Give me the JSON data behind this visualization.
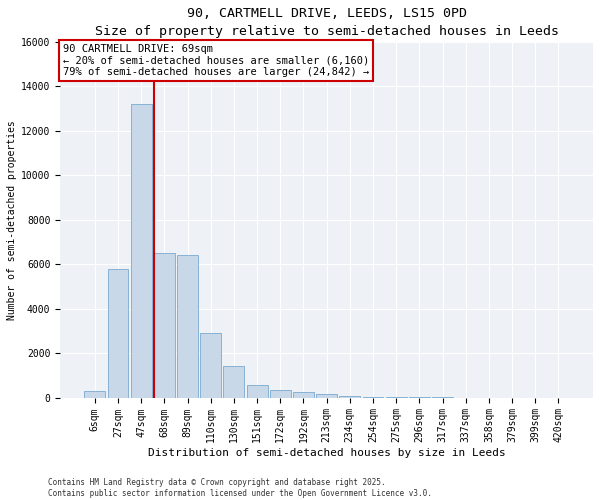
{
  "title": "90, CARTMELL DRIVE, LEEDS, LS15 0PD",
  "subtitle": "Size of property relative to semi-detached houses in Leeds",
  "xlabel": "Distribution of semi-detached houses by size in Leeds",
  "ylabel": "Number of semi-detached properties",
  "bin_labels": [
    "6sqm",
    "27sqm",
    "47sqm",
    "68sqm",
    "89sqm",
    "110sqm",
    "130sqm",
    "151sqm",
    "172sqm",
    "192sqm",
    "213sqm",
    "234sqm",
    "254sqm",
    "275sqm",
    "296sqm",
    "317sqm",
    "337sqm",
    "358sqm",
    "379sqm",
    "399sqm",
    "420sqm"
  ],
  "bar_values": [
    300,
    5800,
    13200,
    6500,
    6400,
    2900,
    1400,
    550,
    350,
    230,
    140,
    50,
    25,
    10,
    5,
    2,
    1,
    1,
    0,
    0,
    0
  ],
  "bar_color": "#c8d8e8",
  "bar_edge_color": "#7aaacf",
  "vline_bin_index": 3,
  "vline_color": "#cc0000",
  "box_color": "#cc0000",
  "annotation_title": "90 CARTMELL DRIVE: 69sqm",
  "annotation_line1": "← 20% of semi-detached houses are smaller (6,160)",
  "annotation_line2": "79% of semi-detached houses are larger (24,842) →",
  "ylim": [
    0,
    16000
  ],
  "yticks": [
    0,
    2000,
    4000,
    6000,
    8000,
    10000,
    12000,
    14000,
    16000
  ],
  "footer_line1": "Contains HM Land Registry data © Crown copyright and database right 2025.",
  "footer_line2": "Contains public sector information licensed under the Open Government Licence v3.0.",
  "bg_color": "#ffffff",
  "plot_bg_color": "#eef2f7",
  "title_fontsize": 9.5,
  "subtitle_fontsize": 8.5,
  "ylabel_fontsize": 7,
  "xlabel_fontsize": 8,
  "tick_fontsize": 7,
  "ann_fontsize": 7.5,
  "footer_fontsize": 5.5
}
